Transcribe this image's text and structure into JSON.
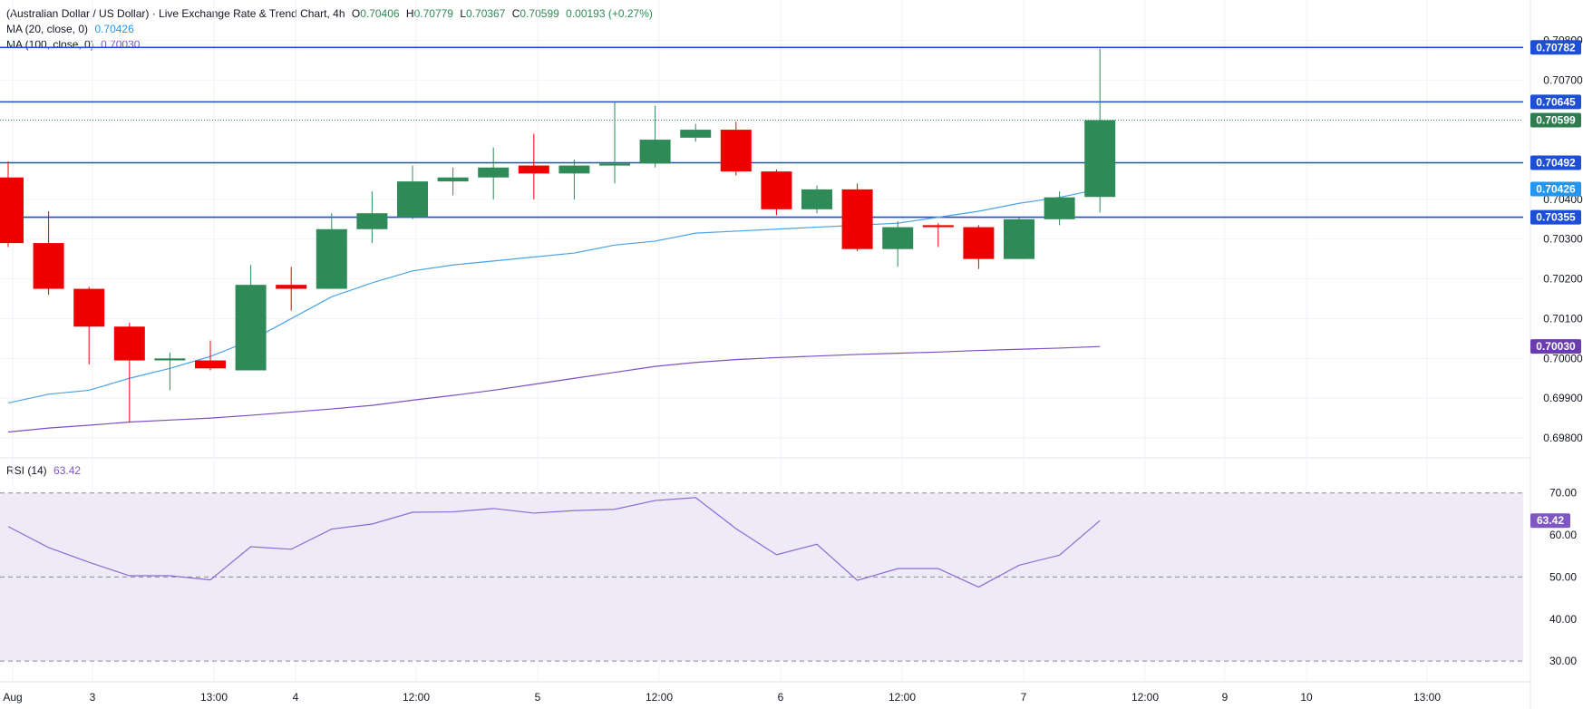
{
  "header": {
    "title": "(Australian Dollar / US Dollar) · Live Exchange Rate & Trend Chart, 4h",
    "ohlc": {
      "open_label": "O",
      "open": "0.70406",
      "high_label": "H",
      "high": "0.70779",
      "low_label": "L",
      "low": "0.70367",
      "close_label": "C",
      "close": "0.70599",
      "change": "0.00193 (+0.27%)"
    },
    "ma20": {
      "label": "MA (20, close, 0)",
      "value": "0.70426"
    },
    "ma100": {
      "label": "MA (100, close, 0)",
      "value": "0.70030"
    },
    "rsi": {
      "label": "RSI (14)",
      "value": "63.42"
    }
  },
  "colors": {
    "up": "#2e8b57",
    "down": "#ee0000",
    "ma20": "#4aa3e8",
    "ma100": "#7e4ec4",
    "rsi": "#8b6bd3",
    "hline": "#1c4fd6",
    "close_tag": "#2e7d4f",
    "ma20_tag": "#2196f3",
    "ma100_tag": "#6a3cb0",
    "rsi_tag": "#7e57c2",
    "rsi_band": "#efeaf8"
  },
  "chart_data": [
    {
      "type": "candlestick",
      "title": "(Australian Dollar / US Dollar) · Live Exchange Rate & Trend Chart, 4h",
      "x_tick_labels": [
        "Aug",
        "3",
        "13:00",
        "4",
        "12:00",
        "5",
        "12:00",
        "6",
        "12:00",
        "7",
        "12:00",
        "9",
        "10",
        "13:00"
      ],
      "y_tick_labels": [
        "0.70800",
        "0.70700",
        "0.70400",
        "0.70300",
        "0.70200",
        "0.70100",
        "0.70000",
        "0.69900",
        "0.69800"
      ],
      "ylim": [
        0.6975,
        0.7081
      ],
      "candles": [
        {
          "o": 0.70455,
          "h": 0.70495,
          "l": 0.7028,
          "c": 0.7029
        },
        {
          "o": 0.7029,
          "h": 0.7037,
          "l": 0.7016,
          "c": 0.70175
        },
        {
          "o": 0.70175,
          "h": 0.7018,
          "l": 0.69985,
          "c": 0.7008
        },
        {
          "o": 0.7008,
          "h": 0.7009,
          "l": 0.6984,
          "c": 0.69995
        },
        {
          "o": 0.69995,
          "h": 0.70015,
          "l": 0.6992,
          "c": 0.7
        },
        {
          "o": 0.69995,
          "h": 0.70045,
          "l": 0.6997,
          "c": 0.69975
        },
        {
          "o": 0.6997,
          "h": 0.70235,
          "l": 0.6997,
          "c": 0.70185
        },
        {
          "o": 0.70185,
          "h": 0.7023,
          "l": 0.7012,
          "c": 0.70175
        },
        {
          "o": 0.70175,
          "h": 0.70365,
          "l": 0.70175,
          "c": 0.70325
        },
        {
          "o": 0.70325,
          "h": 0.7042,
          "l": 0.7029,
          "c": 0.70365
        },
        {
          "o": 0.70355,
          "h": 0.70485,
          "l": 0.7035,
          "c": 0.70445
        },
        {
          "o": 0.70445,
          "h": 0.7048,
          "l": 0.7041,
          "c": 0.70455
        },
        {
          "o": 0.70455,
          "h": 0.7053,
          "l": 0.704,
          "c": 0.7048
        },
        {
          "o": 0.70485,
          "h": 0.70565,
          "l": 0.704,
          "c": 0.70465
        },
        {
          "o": 0.70465,
          "h": 0.705,
          "l": 0.704,
          "c": 0.70485
        },
        {
          "o": 0.70485,
          "h": 0.70645,
          "l": 0.7044,
          "c": 0.7049
        },
        {
          "o": 0.7049,
          "h": 0.70635,
          "l": 0.7048,
          "c": 0.7055
        },
        {
          "o": 0.70555,
          "h": 0.7059,
          "l": 0.70545,
          "c": 0.70575
        },
        {
          "o": 0.70575,
          "h": 0.70595,
          "l": 0.7046,
          "c": 0.7047
        },
        {
          "o": 0.7047,
          "h": 0.70475,
          "l": 0.7036,
          "c": 0.70375
        },
        {
          "o": 0.70375,
          "h": 0.70435,
          "l": 0.70365,
          "c": 0.70425
        },
        {
          "o": 0.70425,
          "h": 0.7044,
          "l": 0.7027,
          "c": 0.70275
        },
        {
          "o": 0.70275,
          "h": 0.70345,
          "l": 0.7023,
          "c": 0.7033
        },
        {
          "o": 0.70335,
          "h": 0.7034,
          "l": 0.7028,
          "c": 0.7033
        },
        {
          "o": 0.7033,
          "h": 0.70335,
          "l": 0.70225,
          "c": 0.7025
        },
        {
          "o": 0.7025,
          "h": 0.70355,
          "l": 0.7025,
          "c": 0.7035
        },
        {
          "o": 0.7035,
          "h": 0.7042,
          "l": 0.70335,
          "c": 0.70405
        },
        {
          "o": 0.70406,
          "h": 0.70779,
          "l": 0.70367,
          "c": 0.70599
        }
      ],
      "series": [
        {
          "name": "MA (20, close, 0)",
          "values": [
            0.69888,
            0.6991,
            0.6992,
            0.6995,
            0.69975,
            0.70005,
            0.70045,
            0.701,
            0.70155,
            0.7019,
            0.7022,
            0.70235,
            0.70245,
            0.70255,
            0.70265,
            0.70285,
            0.70295,
            0.70315,
            0.7032,
            0.70325,
            0.7033,
            0.70335,
            0.7034,
            0.70355,
            0.7037,
            0.7039,
            0.70405,
            0.70426
          ]
        },
        {
          "name": "MA (100, close, 0)",
          "values": [
            0.69815,
            0.69825,
            0.69832,
            0.6984,
            0.69845,
            0.6985,
            0.69857,
            0.69865,
            0.69873,
            0.69882,
            0.69895,
            0.69907,
            0.6992,
            0.69935,
            0.6995,
            0.69965,
            0.6998,
            0.6999,
            0.69997,
            0.70002,
            0.70006,
            0.7001,
            0.70013,
            0.70016,
            0.7002,
            0.70023,
            0.70026,
            0.7003
          ]
        }
      ],
      "horizontal_lines": [
        0.70782,
        0.70645,
        0.70492,
        0.70355
      ],
      "price_tags": [
        "0.70782",
        "0.70645",
        "0.70599",
        "0.70492",
        "0.70426",
        "0.70355",
        "0.70030"
      ],
      "grid": true
    },
    {
      "type": "line",
      "title": "RSI (14)",
      "y_tick_labels": [
        "70.00",
        "60.00",
        "50.00",
        "40.00",
        "30.00"
      ],
      "ylim": [
        28.3,
        73.6
      ],
      "reference_lines": [
        70,
        50,
        30
      ],
      "band": [
        30,
        70
      ],
      "series": [
        {
          "name": "RSI (14)",
          "values": [
            62.0,
            57.0,
            53.5,
            50.3,
            50.3,
            49.3,
            57.2,
            56.6,
            61.4,
            62.6,
            65.4,
            65.5,
            66.3,
            65.2,
            65.8,
            66.1,
            68.2,
            68.9,
            61.5,
            55.3,
            57.8,
            49.2,
            52.0,
            52.0,
            47.6,
            52.8,
            55.2,
            63.42
          ]
        }
      ],
      "price_tags": [
        "63.42"
      ],
      "grid": true
    }
  ]
}
